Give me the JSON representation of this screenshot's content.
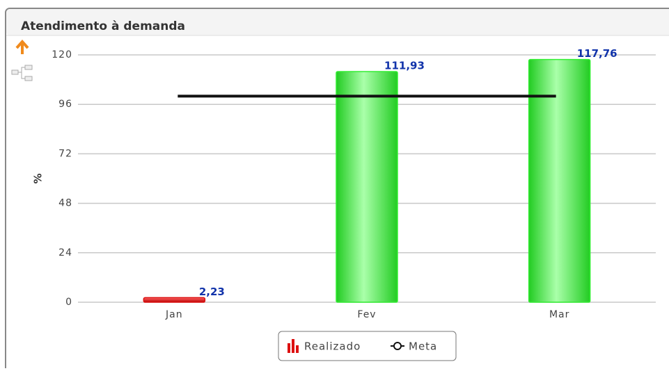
{
  "chart_data": {
    "type": "bar",
    "title": "Atendimento à demanda",
    "y_label": "%",
    "categories": [
      "Jan",
      "Fev",
      "Mar"
    ],
    "series": [
      {
        "name": "Realizado",
        "type": "bar",
        "colors": [
          "#dd1111",
          "#33ee33",
          "#33ee33"
        ],
        "values": [
          2.23,
          111.93,
          117.76
        ],
        "value_labels": [
          "2,23",
          "111,93",
          "117,76"
        ]
      },
      {
        "name": "Meta",
        "type": "line",
        "color": "#111111",
        "values": [
          100,
          100,
          100
        ]
      }
    ],
    "ylim": [
      0,
      120
    ],
    "yticks": [
      0,
      24,
      48,
      72,
      96,
      120
    ],
    "grid": true,
    "legend": "bottom"
  }
}
